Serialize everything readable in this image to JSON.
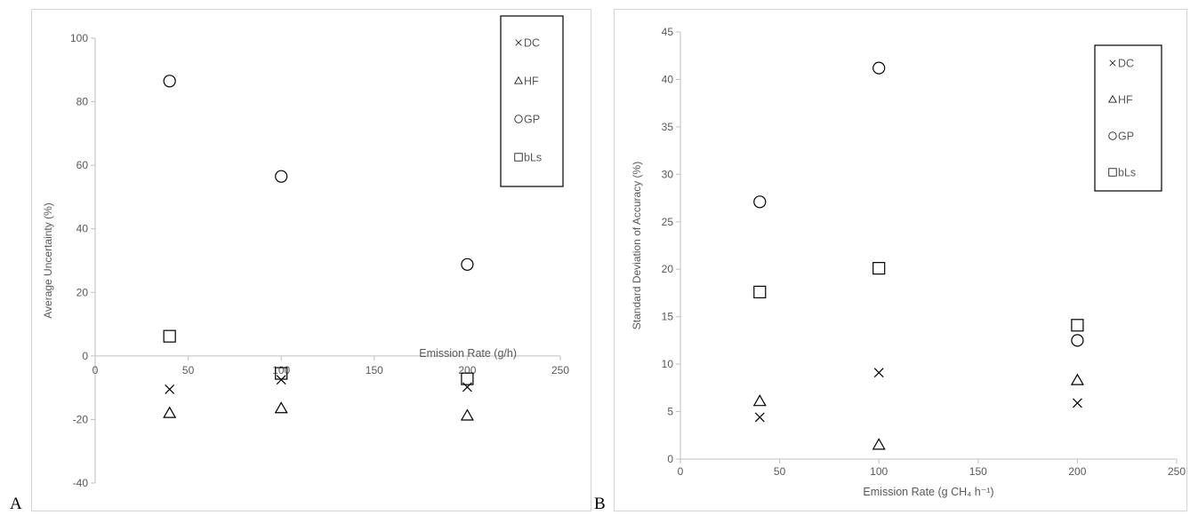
{
  "panel_letters": [
    "A",
    "B"
  ],
  "chart_data": [
    {
      "type": "scatter",
      "title": "",
      "xlabel": "Emission Rate (g/h)",
      "ylabel": "Average Uncertainty (%)",
      "xlim": [
        0,
        250
      ],
      "ylim": [
        -40,
        100
      ],
      "xticks": [
        0,
        50,
        100,
        150,
        200,
        250
      ],
      "yticks": [
        -40,
        -20,
        0,
        20,
        40,
        60,
        80,
        100
      ],
      "grid": false,
      "legend_position": "top-right",
      "series": [
        {
          "name": "DC",
          "marker": "x",
          "points": [
            [
              40,
              -10.5
            ],
            [
              100,
              -7.5
            ],
            [
              200,
              -9.8
            ]
          ]
        },
        {
          "name": "HF",
          "marker": "triangle",
          "points": [
            [
              40,
              -18
            ],
            [
              100,
              -16.5
            ],
            [
              200,
              -18.8
            ]
          ]
        },
        {
          "name": "GP",
          "marker": "circle",
          "points": [
            [
              40,
              86.5
            ],
            [
              100,
              56.5
            ],
            [
              200,
              28.8
            ]
          ]
        },
        {
          "name": "bLs",
          "marker": "square",
          "points": [
            [
              40,
              6.2
            ],
            [
              100,
              -5.5
            ],
            [
              200,
              -7.2
            ]
          ]
        }
      ]
    },
    {
      "type": "scatter",
      "title": "",
      "xlabel": "Emission Rate (g CH₄ h⁻¹)",
      "ylabel": "Standard Deviation of Accuracy (%)",
      "xlim": [
        0,
        250
      ],
      "ylim": [
        0,
        45
      ],
      "xticks": [
        0,
        50,
        100,
        150,
        200,
        250
      ],
      "yticks": [
        0,
        5,
        10,
        15,
        20,
        25,
        30,
        35,
        40,
        45
      ],
      "grid": false,
      "legend_position": "top-right",
      "series": [
        {
          "name": "DC",
          "marker": "x",
          "points": [
            [
              40,
              4.4
            ],
            [
              100,
              9.1
            ],
            [
              200,
              5.9
            ]
          ]
        },
        {
          "name": "HF",
          "marker": "triangle",
          "points": [
            [
              40,
              6.1
            ],
            [
              100,
              1.5
            ],
            [
              200,
              8.3
            ]
          ]
        },
        {
          "name": "GP",
          "marker": "circle",
          "points": [
            [
              40,
              27.1
            ],
            [
              100,
              41.2
            ],
            [
              200,
              12.5
            ]
          ]
        },
        {
          "name": "bLs",
          "marker": "square",
          "points": [
            [
              40,
              17.6
            ],
            [
              100,
              20.1
            ],
            [
              200,
              14.1
            ]
          ]
        }
      ]
    }
  ]
}
